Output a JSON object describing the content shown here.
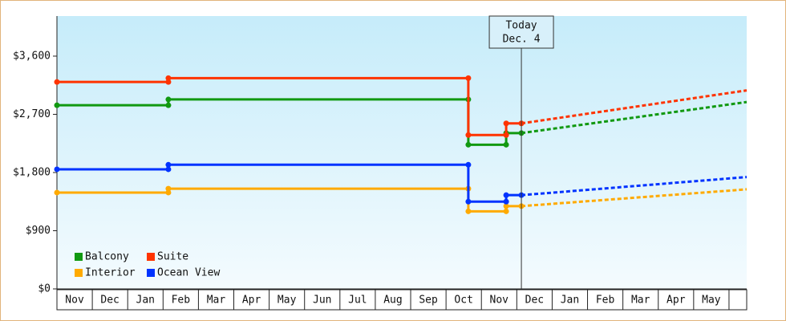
{
  "chart_data": {
    "type": "step-line",
    "categories": [
      "Nov",
      "Dec",
      "Jan",
      "Feb",
      "Mar",
      "Apr",
      "May",
      "Jun",
      "Jul",
      "Aug",
      "Sep",
      "Oct",
      "Nov",
      "Dec",
      "Jan",
      "Feb",
      "Mar",
      "Apr",
      "May"
    ],
    "xlim": [
      0,
      19.5
    ],
    "ylim": [
      0,
      4220
    ],
    "yticks": [
      {
        "value": 0,
        "label": "$0"
      },
      {
        "value": 900,
        "label": "$900"
      },
      {
        "value": 1800,
        "label": "$1,800"
      },
      {
        "value": 2700,
        "label": "$2,700"
      },
      {
        "value": 3600,
        "label": "$3,600"
      }
    ],
    "legend": "bottom-left",
    "today": {
      "x": 13.13,
      "label": [
        "Today",
        "Dec. 4"
      ]
    },
    "series": [
      {
        "name": "Balcony",
        "color": "#119911",
        "x": [
          0,
          3.15,
          3.15,
          11.63,
          11.63,
          12.7,
          12.7,
          13.13
        ],
        "values": [
          2840,
          2840,
          2930,
          2930,
          2230,
          2230,
          2410,
          2410
        ],
        "projection": {
          "x": [
            13.13,
            19.5
          ],
          "values": [
            2410,
            2890
          ]
        }
      },
      {
        "name": "Suite",
        "color": "#ff3300",
        "x": [
          0,
          3.15,
          3.15,
          11.63,
          11.63,
          12.7,
          12.7,
          13.13
        ],
        "values": [
          3200,
          3200,
          3260,
          3260,
          2380,
          2380,
          2560,
          2560
        ],
        "projection": {
          "x": [
            13.13,
            19.5
          ],
          "values": [
            2560,
            3070
          ]
        }
      },
      {
        "name": "Interior",
        "color": "#ffaa00",
        "x": [
          0,
          3.15,
          3.15,
          11.63,
          11.63,
          12.7,
          12.7,
          13.13
        ],
        "values": [
          1490,
          1490,
          1550,
          1550,
          1200,
          1200,
          1280,
          1280
        ],
        "projection": {
          "x": [
            13.13,
            19.5
          ],
          "values": [
            1280,
            1540
          ]
        }
      },
      {
        "name": "Ocean View",
        "color": "#0033ff",
        "x": [
          0,
          3.15,
          3.15,
          11.63,
          11.63,
          12.7,
          12.7,
          13.13
        ],
        "values": [
          1850,
          1850,
          1920,
          1920,
          1350,
          1350,
          1450,
          1450
        ],
        "projection": {
          "x": [
            13.13,
            19.5
          ],
          "values": [
            1450,
            1730
          ]
        }
      }
    ]
  }
}
